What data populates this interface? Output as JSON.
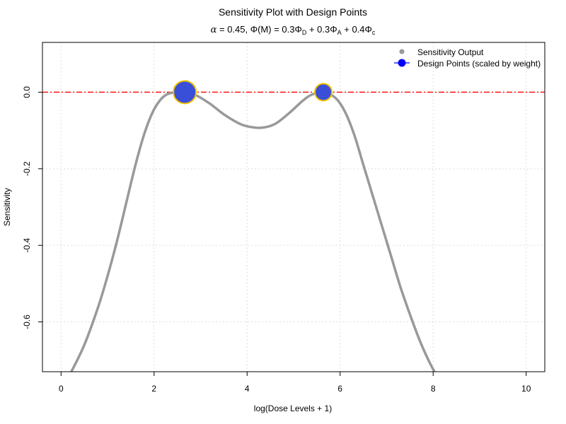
{
  "chart_data": {
    "type": "line",
    "title": "Sensitivity Plot with Design Points",
    "subtitle": {
      "alpha_symbol": "α",
      "alpha_eq": " = 0.45, ",
      "phi_symbol": "Φ",
      "phi_arg": "(M) = 0.3",
      "phi_d": "Φ",
      "d_sub": "D",
      "plus1": " + 0.3",
      "phi_a": "Φ",
      "a_sub": "A",
      "plus2": " + 0.4",
      "phi_c": "Φ",
      "c_sub": "c"
    },
    "xlabel": "log(Dose Levels + 1)",
    "ylabel": "Sensitivity",
    "xlim": [
      -0.4,
      10.4
    ],
    "ylim": [
      -0.73,
      0.13
    ],
    "x_ticks": [
      0,
      2,
      4,
      6,
      8,
      10
    ],
    "y_ticks": [
      0.0,
      -0.2,
      -0.4,
      -0.6
    ],
    "x_tick_labels": [
      "0",
      "2",
      "4",
      "6",
      "8",
      "10"
    ],
    "y_tick_labels": [
      "0.0",
      "-0.2",
      "-0.4",
      "-0.6"
    ],
    "grid": true,
    "legend_position": "top-right",
    "reference_line": {
      "y": 0.0,
      "color": "#ff0000",
      "style": "dash-dot"
    },
    "series": [
      {
        "name": "Sensitivity Output",
        "color": "#999999",
        "x": [
          0.0,
          0.2,
          0.5,
          0.8,
          1.0,
          1.2,
          1.4,
          1.6,
          1.8,
          2.0,
          2.2,
          2.4,
          2.66,
          2.9,
          3.2,
          3.5,
          3.8,
          4.0,
          4.3,
          4.6,
          4.9,
          5.2,
          5.4,
          5.64,
          5.9,
          6.1,
          6.3,
          6.5,
          6.7,
          6.9,
          7.1,
          7.3,
          7.5,
          7.7,
          7.9,
          8.1,
          8.3,
          8.5,
          8.7
        ],
        "y": [
          -0.78,
          -0.735,
          -0.66,
          -0.56,
          -0.48,
          -0.39,
          -0.29,
          -0.19,
          -0.105,
          -0.045,
          -0.012,
          -0.001,
          0.0,
          -0.008,
          -0.03,
          -0.058,
          -0.08,
          -0.089,
          -0.093,
          -0.083,
          -0.055,
          -0.022,
          -0.006,
          0.0,
          -0.015,
          -0.05,
          -0.11,
          -0.19,
          -0.27,
          -0.35,
          -0.43,
          -0.51,
          -0.58,
          -0.645,
          -0.7,
          -0.745,
          -0.78,
          -0.8,
          -0.81
        ]
      },
      {
        "name": "Design Points (scaled by weight)",
        "color": "#3a4fd8",
        "edge_color": "#f2c200",
        "x": [
          2.66,
          5.64
        ],
        "y": [
          0.0,
          0.0
        ],
        "weights": [
          0.6,
          0.4
        ]
      }
    ]
  }
}
